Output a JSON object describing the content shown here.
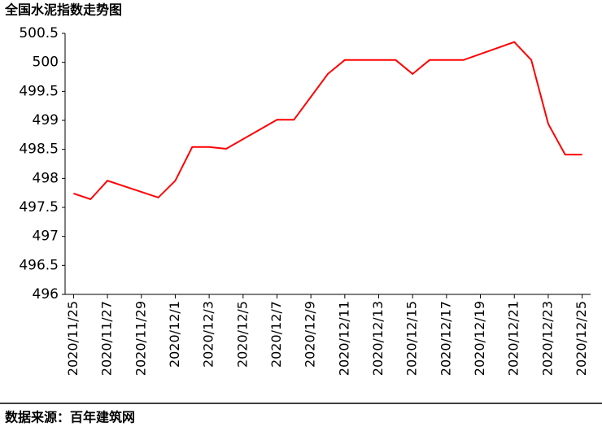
{
  "chart_data": {
    "type": "line",
    "title": "全国水泥指数走势图",
    "source": "数据来源：百年建筑网",
    "x": [
      "2020/11/25",
      "2020/11/26",
      "2020/11/27",
      "2020/11/30",
      "2020/12/1",
      "2020/12/2",
      "2020/12/3",
      "2020/12/4",
      "2020/12/7",
      "2020/12/8",
      "2020/12/10",
      "2020/12/11",
      "2020/12/14",
      "2020/12/15",
      "2020/12/16",
      "2020/12/17",
      "2020/12/18",
      "2020/12/21",
      "2020/12/22",
      "2020/12/23",
      "2020/12/24",
      "2020/12/25"
    ],
    "series": [
      {
        "name": "全国水泥指数",
        "color": "#ff0000",
        "values": [
          497.74,
          497.64,
          497.96,
          497.67,
          497.96,
          498.54,
          498.54,
          498.51,
          499.01,
          499.01,
          499.8,
          500.04,
          500.04,
          499.8,
          500.04,
          500.04,
          500.04,
          500.35,
          500.04,
          498.94,
          498.41,
          498.41
        ]
      }
    ],
    "xticks": [
      "2020/11/25",
      "2020/11/27",
      "2020/11/29",
      "2020/12/1",
      "2020/12/3",
      "2020/12/5",
      "2020/12/7",
      "2020/12/9",
      "2020/12/11",
      "2020/12/13",
      "2020/12/15",
      "2020/12/17",
      "2020/12/19",
      "2020/12/21",
      "2020/12/23",
      "2020/12/25"
    ],
    "ylim": [
      496,
      500.5
    ],
    "yticks": [
      496,
      496.5,
      497,
      497.5,
      498,
      498.5,
      499,
      499.5,
      500,
      500.5
    ],
    "grid": false
  }
}
